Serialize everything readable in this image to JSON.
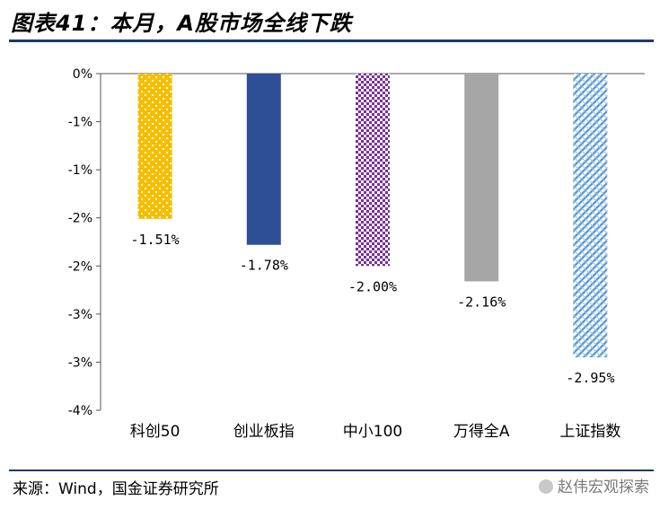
{
  "page": {
    "title": "图表41：本月，A股市场全线下跌",
    "source": "来源：Wind，国金证券研究所",
    "watermark": "赵伟宏观探索"
  },
  "chart_data": {
    "type": "bar",
    "categories": [
      "科创50",
      "创业板指",
      "中小100",
      "万得全A",
      "上证指数"
    ],
    "values": [
      -1.51,
      -1.78,
      -2.0,
      -2.16,
      -2.95
    ],
    "data_labels": [
      "-1.51%",
      "-1.78%",
      "-2.00%",
      "-2.16%",
      "-2.95%"
    ],
    "ylim": [
      -3.5,
      0
    ],
    "y_ticks": [
      0,
      -0.5,
      -1.0,
      -1.5,
      -2.0,
      -2.5,
      -3.0,
      -3.5
    ],
    "y_tick_labels": [
      "0%",
      "-1%",
      "-1%",
      "-2%",
      "-2%",
      "-3%",
      "-3%",
      "-4%"
    ],
    "colors": [
      "#f5be00",
      "#2e4f95",
      "#7a2f9c",
      "#a6a6a6",
      "#5b9bd5"
    ],
    "patterns": [
      "dots",
      "solid",
      "checker",
      "solid",
      "diagonal-weave"
    ],
    "grid": false,
    "legend": "none",
    "title": "",
    "xlabel": "",
    "ylabel": ""
  }
}
